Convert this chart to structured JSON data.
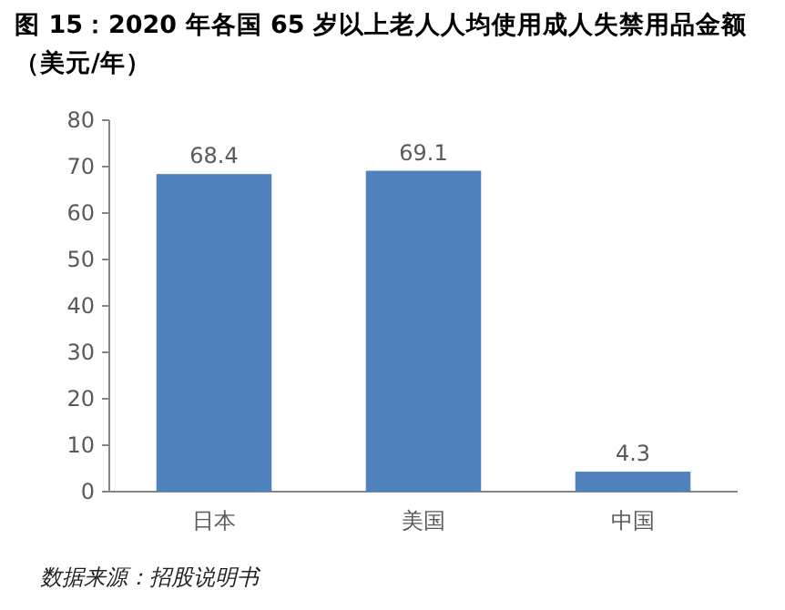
{
  "chart_data": {
    "type": "bar",
    "title": "图 15：2020 年各国 65 岁以上老人人均使用成人失禁用品金额（美元/年）",
    "categories": [
      "日本",
      "美国",
      "中国"
    ],
    "values": [
      68.4,
      69.1,
      4.3
    ],
    "color": "#4f81bd",
    "ylim": [
      0,
      80
    ],
    "yticks": [
      0,
      10,
      20,
      30,
      40,
      50,
      60,
      70,
      80
    ],
    "grid": false,
    "data_labels": true,
    "annotations": [
      "数据来源：招股说明书"
    ]
  }
}
